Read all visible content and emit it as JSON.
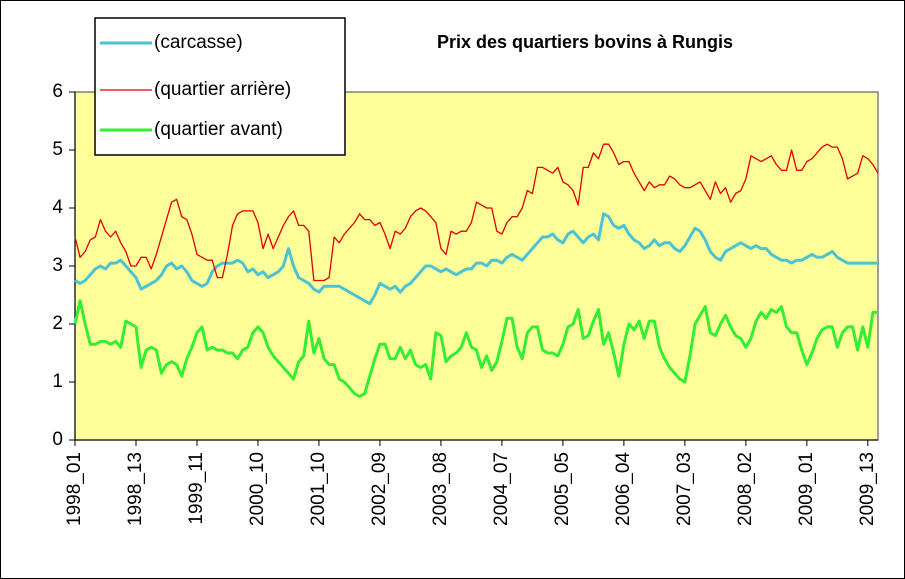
{
  "chart_data": {
    "type": "line",
    "title": "Prix des quartiers bovins à Rungis",
    "categories": [
      "1998_01",
      null,
      null,
      null,
      null,
      null,
      null,
      null,
      null,
      null,
      null,
      null,
      "1998_13",
      null,
      null,
      null,
      null,
      null,
      null,
      null,
      null,
      null,
      null,
      null,
      "1999_11",
      null,
      null,
      null,
      null,
      null,
      null,
      null,
      null,
      null,
      null,
      null,
      "2000_10",
      null,
      null,
      null,
      null,
      null,
      null,
      null,
      null,
      null,
      null,
      null,
      "2001_10",
      null,
      null,
      null,
      null,
      null,
      null,
      null,
      null,
      null,
      null,
      null,
      "2002_09",
      null,
      null,
      null,
      null,
      null,
      null,
      null,
      null,
      null,
      null,
      null,
      "2003_08",
      null,
      null,
      null,
      null,
      null,
      null,
      null,
      null,
      null,
      null,
      null,
      "2004_07",
      null,
      null,
      null,
      null,
      null,
      null,
      null,
      null,
      null,
      null,
      null,
      "2005_05",
      null,
      null,
      null,
      null,
      null,
      null,
      null,
      null,
      null,
      null,
      null,
      "2006_04",
      null,
      null,
      null,
      null,
      null,
      null,
      null,
      null,
      null,
      null,
      null,
      "2007_03",
      null,
      null,
      null,
      null,
      null,
      null,
      null,
      null,
      null,
      null,
      null,
      "2008_02",
      null,
      null,
      null,
      null,
      null,
      null,
      null,
      null,
      null,
      null,
      null,
      "2009_01",
      null,
      null,
      null,
      null,
      null,
      null,
      null,
      null,
      null,
      null,
      null,
      "2009_13",
      null,
      null
    ],
    "series": [
      {
        "name": "(carcasse)",
        "color": "#4bc3d3",
        "width": 3,
        "values": [
          2.75,
          2.7,
          2.75,
          2.85,
          2.95,
          3.0,
          2.95,
          3.05,
          3.05,
          3.1,
          3.0,
          2.9,
          2.8,
          2.6,
          2.65,
          2.7,
          2.75,
          2.85,
          3.0,
          3.05,
          2.95,
          3.0,
          2.9,
          2.75,
          2.7,
          2.65,
          2.7,
          2.9,
          3.0,
          3.05,
          3.05,
          3.05,
          3.1,
          3.05,
          2.9,
          2.95,
          2.85,
          2.9,
          2.8,
          2.85,
          2.9,
          3.0,
          3.3,
          3.0,
          2.8,
          2.75,
          2.7,
          2.6,
          2.55,
          2.65,
          2.65,
          2.65,
          2.65,
          2.6,
          2.55,
          2.5,
          2.45,
          2.4,
          2.35,
          2.5,
          2.7,
          2.65,
          2.6,
          2.65,
          2.55,
          2.65,
          2.7,
          2.8,
          2.9,
          3.0,
          3.0,
          2.95,
          2.9,
          2.95,
          2.9,
          2.85,
          2.9,
          2.95,
          2.95,
          3.05,
          3.05,
          3.0,
          3.1,
          3.1,
          3.05,
          3.15,
          3.2,
          3.15,
          3.1,
          3.2,
          3.3,
          3.4,
          3.5,
          3.5,
          3.55,
          3.45,
          3.4,
          3.55,
          3.6,
          3.5,
          3.4,
          3.5,
          3.55,
          3.45,
          3.9,
          3.85,
          3.7,
          3.65,
          3.7,
          3.55,
          3.45,
          3.4,
          3.3,
          3.35,
          3.45,
          3.35,
          3.4,
          3.4,
          3.3,
          3.25,
          3.35,
          3.5,
          3.65,
          3.6,
          3.45,
          3.25,
          3.15,
          3.1,
          3.25,
          3.3,
          3.35,
          3.4,
          3.35,
          3.3,
          3.35,
          3.3,
          3.3,
          3.2,
          3.15,
          3.1,
          3.1,
          3.05,
          3.1,
          3.1,
          3.15,
          3.2,
          3.15,
          3.15,
          3.2,
          3.25,
          3.15,
          3.1,
          3.05,
          3.05,
          3.05,
          3.05,
          3.05,
          3.05,
          3.05
        ]
      },
      {
        "name": "(quartier arrière)",
        "color": "#e00000",
        "width": 1.3,
        "values": [
          3.5,
          3.15,
          3.25,
          3.45,
          3.5,
          3.8,
          3.6,
          3.5,
          3.6,
          3.4,
          3.25,
          3.0,
          3.0,
          3.15,
          3.15,
          2.95,
          3.2,
          3.5,
          3.8,
          4.1,
          4.15,
          3.85,
          3.8,
          3.55,
          3.2,
          3.15,
          3.1,
          3.1,
          2.8,
          2.8,
          3.2,
          3.7,
          3.9,
          3.95,
          3.95,
          3.95,
          3.75,
          3.3,
          3.55,
          3.3,
          3.5,
          3.7,
          3.85,
          3.95,
          3.7,
          3.7,
          3.6,
          2.75,
          2.75,
          2.75,
          2.8,
          3.5,
          3.4,
          3.55,
          3.65,
          3.75,
          3.9,
          3.8,
          3.8,
          3.7,
          3.75,
          3.55,
          3.3,
          3.6,
          3.55,
          3.65,
          3.85,
          3.95,
          4.0,
          3.95,
          3.85,
          3.75,
          3.3,
          3.2,
          3.6,
          3.55,
          3.6,
          3.6,
          3.75,
          4.1,
          4.05,
          4.0,
          4.0,
          3.6,
          3.55,
          3.75,
          3.85,
          3.85,
          4.0,
          4.3,
          4.25,
          4.7,
          4.7,
          4.65,
          4.6,
          4.7,
          4.45,
          4.4,
          4.3,
          4.05,
          4.7,
          4.7,
          4.95,
          4.85,
          5.1,
          5.1,
          4.95,
          4.75,
          4.8,
          4.8,
          4.6,
          4.45,
          4.3,
          4.45,
          4.35,
          4.4,
          4.4,
          4.55,
          4.5,
          4.4,
          4.35,
          4.35,
          4.4,
          4.45,
          4.3,
          4.15,
          4.45,
          4.25,
          4.35,
          4.1,
          4.25,
          4.3,
          4.5,
          4.9,
          4.85,
          4.8,
          4.85,
          4.9,
          4.75,
          4.65,
          4.65,
          5.0,
          4.65,
          4.65,
          4.8,
          4.85,
          4.95,
          5.05,
          5.1,
          5.05,
          5.05,
          4.85,
          4.5,
          4.55,
          4.6,
          4.9,
          4.85,
          4.75,
          4.6
        ]
      },
      {
        "name": "(quartier avant)",
        "color": "#33ee33",
        "width": 3,
        "values": [
          2.0,
          2.4,
          2.0,
          1.65,
          1.65,
          1.7,
          1.7,
          1.65,
          1.7,
          1.6,
          2.05,
          2.0,
          1.95,
          1.25,
          1.55,
          1.6,
          1.55,
          1.15,
          1.3,
          1.35,
          1.3,
          1.1,
          1.4,
          1.6,
          1.85,
          1.95,
          1.55,
          1.6,
          1.55,
          1.55,
          1.5,
          1.5,
          1.4,
          1.55,
          1.6,
          1.85,
          1.95,
          1.85,
          1.6,
          1.45,
          1.35,
          1.25,
          1.15,
          1.05,
          1.35,
          1.45,
          2.05,
          1.5,
          1.75,
          1.4,
          1.3,
          1.3,
          1.05,
          1.0,
          0.9,
          0.8,
          0.75,
          0.8,
          1.1,
          1.4,
          1.65,
          1.65,
          1.4,
          1.4,
          1.6,
          1.4,
          1.55,
          1.3,
          1.25,
          1.3,
          1.05,
          1.85,
          1.8,
          1.35,
          1.45,
          1.5,
          1.6,
          1.85,
          1.6,
          1.55,
          1.25,
          1.45,
          1.2,
          1.35,
          1.7,
          2.1,
          2.1,
          1.6,
          1.4,
          1.85,
          1.95,
          1.95,
          1.55,
          1.5,
          1.5,
          1.45,
          1.65,
          1.95,
          2.0,
          2.25,
          1.75,
          1.8,
          2.05,
          2.25,
          1.65,
          1.85,
          1.5,
          1.1,
          1.65,
          2.0,
          1.9,
          2.05,
          1.75,
          2.05,
          2.05,
          1.6,
          1.4,
          1.25,
          1.15,
          1.05,
          1.0,
          1.45,
          2.0,
          2.15,
          2.3,
          1.85,
          1.8,
          2.0,
          2.15,
          1.95,
          1.8,
          1.75,
          1.6,
          1.75,
          2.05,
          2.2,
          2.1,
          2.25,
          2.2,
          2.3,
          1.95,
          1.85,
          1.85,
          1.55,
          1.3,
          1.5,
          1.75,
          1.9,
          1.95,
          1.95,
          1.6,
          1.85,
          1.95,
          1.95,
          1.55,
          1.95,
          1.6,
          2.2,
          2.2
        ]
      }
    ],
    "ylim": [
      0,
      6
    ],
    "yticks": [
      0,
      1,
      2,
      3,
      4,
      5,
      6
    ],
    "grid": false,
    "legend": "top-left",
    "plot_background": "#ffff99"
  }
}
